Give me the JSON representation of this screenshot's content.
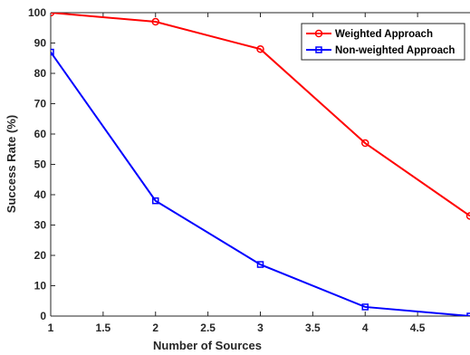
{
  "chart_data": {
    "type": "line",
    "title": "",
    "xlabel": "Number of Sources",
    "ylabel": "Success Rate (%)",
    "xlim": [
      1,
      5
    ],
    "ylim": [
      0,
      100
    ],
    "x_ticks": [
      1,
      1.5,
      2,
      2.5,
      3,
      3.5,
      4,
      4.5
    ],
    "x_tick_labels": [
      "1",
      "1.5",
      "2",
      "2.5",
      "3",
      "3.5",
      "4",
      "4.5"
    ],
    "y_ticks": [
      0,
      10,
      20,
      30,
      40,
      50,
      60,
      70,
      80,
      90,
      100
    ],
    "y_tick_labels": [
      "0",
      "10",
      "20",
      "30",
      "40",
      "50",
      "60",
      "70",
      "80",
      "90",
      "100"
    ],
    "grid": false,
    "legend_position": "top-right",
    "series": [
      {
        "name": "Weighted Approach",
        "color": "#ff0000",
        "marker": "circle",
        "x": [
          1,
          2,
          3,
          4,
          5
        ],
        "y": [
          100,
          97,
          88,
          57,
          33
        ]
      },
      {
        "name": "Non-weighted Approach",
        "color": "#0000ff",
        "marker": "square",
        "x": [
          1,
          2,
          3,
          4,
          5
        ],
        "y": [
          87,
          38,
          17,
          3,
          0
        ]
      }
    ]
  }
}
